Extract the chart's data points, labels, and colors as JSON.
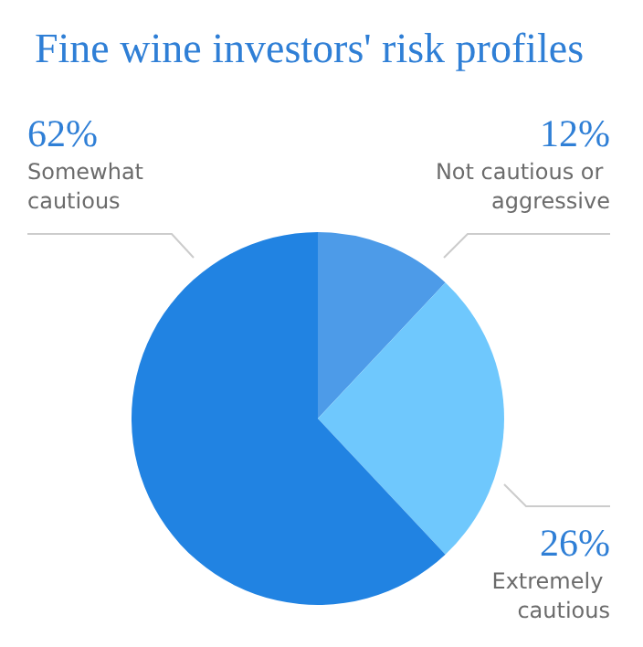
{
  "chart_data": {
    "type": "pie",
    "title": "Fine wine investors' risk profiles",
    "categories": [
      "Not cautious or aggressive",
      "Extremely cautious",
      "Somewhat cautious"
    ],
    "values": [
      12,
      26,
      62
    ],
    "value_labels": [
      "12%",
      "26%",
      "62%"
    ],
    "colors": [
      "#4d9be8",
      "#6fc8fd",
      "#2183e2"
    ],
    "legend": false
  }
}
